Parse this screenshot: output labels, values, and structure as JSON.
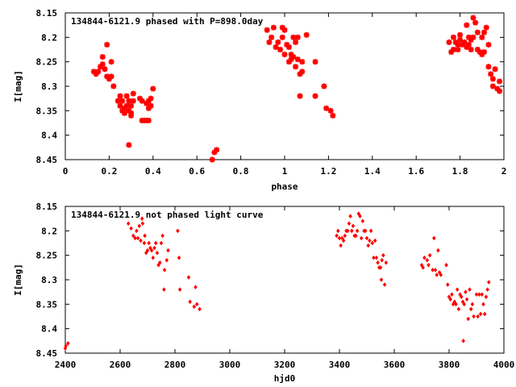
{
  "chart_data": [
    {
      "type": "scatter",
      "title": "134844-6121.9 phased with P=898.0day",
      "xlabel": "phase",
      "ylabel": "I[mag]",
      "xlim": [
        0,
        2
      ],
      "ylim": [
        8.45,
        8.15
      ],
      "y_inverted": true,
      "x_ticks": [
        "0",
        "0.2",
        "0.4",
        "0.6",
        "0.8",
        "1",
        "1.2",
        "1.4",
        "1.6",
        "1.8",
        "2"
      ],
      "y_ticks": [
        "8.15",
        "8.2",
        "8.25",
        "8.3",
        "8.35",
        "8.4",
        "8.45"
      ],
      "marker": "star",
      "series": [
        {
          "color": "#ff0000",
          "points": [
            [
              0.13,
              8.27
            ],
            [
              0.14,
              8.275
            ],
            [
              0.15,
              8.27
            ],
            [
              0.16,
              8.26
            ],
            [
              0.17,
              8.255
            ],
            [
              0.17,
              8.24
            ],
            [
              0.18,
              8.265
            ],
            [
              0.19,
              8.215
            ],
            [
              0.19,
              8.28
            ],
            [
              0.2,
              8.285
            ],
            [
              0.21,
              8.28
            ],
            [
              0.21,
              8.25
            ],
            [
              0.22,
              8.3
            ],
            [
              0.24,
              8.33
            ],
            [
              0.25,
              8.34
            ],
            [
              0.25,
              8.32
            ],
            [
              0.26,
              8.35
            ],
            [
              0.26,
              8.33
            ],
            [
              0.27,
              8.355
            ],
            [
              0.27,
              8.345
            ],
            [
              0.28,
              8.34
            ],
            [
              0.28,
              8.32
            ],
            [
              0.29,
              8.35
            ],
            [
              0.29,
              8.33
            ],
            [
              0.3,
              8.355
            ],
            [
              0.3,
              8.36
            ],
            [
              0.3,
              8.34
            ],
            [
              0.31,
              8.33
            ],
            [
              0.31,
              8.315
            ],
            [
              0.29,
              8.42
            ],
            [
              0.34,
              8.325
            ],
            [
              0.35,
              8.37
            ],
            [
              0.35,
              8.33
            ],
            [
              0.36,
              8.37
            ],
            [
              0.37,
              8.37
            ],
            [
              0.37,
              8.335
            ],
            [
              0.38,
              8.33
            ],
            [
              0.38,
              8.345
            ],
            [
              0.38,
              8.37
            ],
            [
              0.39,
              8.34
            ],
            [
              0.39,
              8.325
            ],
            [
              0.4,
              8.305
            ],
            [
              0.67,
              8.45
            ],
            [
              0.68,
              8.435
            ],
            [
              0.69,
              8.43
            ],
            [
              0.92,
              8.185
            ],
            [
              0.93,
              8.21
            ],
            [
              0.94,
              8.2
            ],
            [
              0.95,
              8.18
            ],
            [
              0.96,
              8.22
            ],
            [
              0.97,
              8.21
            ],
            [
              0.98,
              8.225
            ],
            [
              0.99,
              8.2
            ],
            [
              0.99,
              8.18
            ],
            [
              1.0,
              8.185
            ],
            [
              1.0,
              8.235
            ],
            [
              1.01,
              8.215
            ],
            [
              1.02,
              8.25
            ],
            [
              1.02,
              8.22
            ],
            [
              1.03,
              8.245
            ],
            [
              1.03,
              8.235
            ],
            [
              1.04,
              8.2
            ],
            [
              1.04,
              8.24
            ],
            [
              1.05,
              8.21
            ],
            [
              1.05,
              8.26
            ],
            [
              1.06,
              8.2
            ],
            [
              1.06,
              8.245
            ],
            [
              1.07,
              8.275
            ],
            [
              1.07,
              8.32
            ],
            [
              1.08,
              8.27
            ],
            [
              1.08,
              8.25
            ],
            [
              1.1,
              8.195
            ],
            [
              1.14,
              8.32
            ],
            [
              1.14,
              8.25
            ],
            [
              1.18,
              8.3
            ],
            [
              1.19,
              8.345
            ],
            [
              1.21,
              8.35
            ],
            [
              1.22,
              8.36
            ],
            [
              1.75,
              8.21
            ],
            [
              1.76,
              8.23
            ],
            [
              1.77,
              8.2
            ],
            [
              1.77,
              8.225
            ],
            [
              1.78,
              8.21
            ],
            [
              1.79,
              8.215
            ],
            [
              1.79,
              8.225
            ],
            [
              1.8,
              8.205
            ],
            [
              1.8,
              8.195
            ],
            [
              1.81,
              8.215
            ],
            [
              1.82,
              8.21
            ],
            [
              1.83,
              8.175
            ],
            [
              1.83,
              8.22
            ],
            [
              1.84,
              8.215
            ],
            [
              1.84,
              8.2
            ],
            [
              1.85,
              8.225
            ],
            [
              1.85,
              8.205
            ],
            [
              1.86,
              8.16
            ],
            [
              1.86,
              8.2
            ],
            [
              1.87,
              8.17
            ],
            [
              1.88,
              8.19
            ],
            [
              1.88,
              8.225
            ],
            [
              1.89,
              8.23
            ],
            [
              1.9,
              8.235
            ],
            [
              1.9,
              8.2
            ],
            [
              1.91,
              8.23
            ],
            [
              1.91,
              8.19
            ],
            [
              1.92,
              8.18
            ],
            [
              1.93,
              8.215
            ],
            [
              1.93,
              8.26
            ],
            [
              1.94,
              8.275
            ],
            [
              1.95,
              8.285
            ],
            [
              1.95,
              8.3
            ],
            [
              1.96,
              8.265
            ],
            [
              1.97,
              8.305
            ],
            [
              1.98,
              8.31
            ],
            [
              1.98,
              8.29
            ]
          ]
        }
      ]
    },
    {
      "type": "scatter",
      "title": "134844-6121.9 not phased light curve",
      "xlabel": "hjd0",
      "ylabel": "I[mag]",
      "xlim": [
        2400,
        4000
      ],
      "ylim": [
        8.45,
        8.15
      ],
      "y_inverted": true,
      "x_ticks": [
        "2400",
        "2600",
        "2800",
        "3000",
        "3200",
        "3400",
        "3600",
        "3800",
        "4000"
      ],
      "y_ticks": [
        "8.15",
        "8.2",
        "8.25",
        "8.3",
        "8.35",
        "8.4",
        "8.45"
      ],
      "marker": "diamond",
      "series": [
        {
          "color": "#ff0000",
          "points": [
            [
              2400,
              8.44
            ],
            [
              2402,
              8.435
            ],
            [
              2410,
              8.43
            ],
            [
              2630,
              8.185
            ],
            [
              2640,
              8.195
            ],
            [
              2648,
              8.21
            ],
            [
              2655,
              8.215
            ],
            [
              2660,
              8.2
            ],
            [
              2665,
              8.215
            ],
            [
              2670,
              8.19
            ],
            [
              2675,
              8.22
            ],
            [
              2680,
              8.175
            ],
            [
              2682,
              8.185
            ],
            [
              2688,
              8.225
            ],
            [
              2690,
              8.21
            ],
            [
              2695,
              8.245
            ],
            [
              2700,
              8.24
            ],
            [
              2705,
              8.225
            ],
            [
              2710,
              8.235
            ],
            [
              2715,
              8.24
            ],
            [
              2720,
              8.255
            ],
            [
              2725,
              8.235
            ],
            [
              2730,
              8.225
            ],
            [
              2735,
              8.245
            ],
            [
              2740,
              8.27
            ],
            [
              2745,
              8.265
            ],
            [
              2750,
              8.225
            ],
            [
              2755,
              8.21
            ],
            [
              2760,
              8.32
            ],
            [
              2762,
              8.28
            ],
            [
              2770,
              8.26
            ],
            [
              2775,
              8.24
            ],
            [
              2810,
              8.2
            ],
            [
              2815,
              8.255
            ],
            [
              2818,
              8.32
            ],
            [
              2850,
              8.295
            ],
            [
              2855,
              8.345
            ],
            [
              2870,
              8.355
            ],
            [
              2875,
              8.315
            ],
            [
              2880,
              8.35
            ],
            [
              2890,
              8.36
            ],
            [
              3390,
              8.21
            ],
            [
              3395,
              8.2
            ],
            [
              3400,
              8.215
            ],
            [
              3405,
              8.23
            ],
            [
              3410,
              8.215
            ],
            [
              3415,
              8.22
            ],
            [
              3420,
              8.21
            ],
            [
              3425,
              8.2
            ],
            [
              3430,
              8.2
            ],
            [
              3435,
              8.185
            ],
            [
              3440,
              8.17
            ],
            [
              3445,
              8.2
            ],
            [
              3450,
              8.19
            ],
            [
              3455,
              8.21
            ],
            [
              3460,
              8.21
            ],
            [
              3465,
              8.2
            ],
            [
              3470,
              8.165
            ],
            [
              3475,
              8.17
            ],
            [
              3480,
              8.215
            ],
            [
              3485,
              8.18
            ],
            [
              3490,
              8.2
            ],
            [
              3495,
              8.2
            ],
            [
              3500,
              8.215
            ],
            [
              3505,
              8.23
            ],
            [
              3510,
              8.22
            ],
            [
              3515,
              8.2
            ],
            [
              3520,
              8.225
            ],
            [
              3525,
              8.255
            ],
            [
              3530,
              8.22
            ],
            [
              3535,
              8.255
            ],
            [
              3540,
              8.265
            ],
            [
              3545,
              8.275
            ],
            [
              3550,
              8.275
            ],
            [
              3553,
              8.3
            ],
            [
              3555,
              8.26
            ],
            [
              3560,
              8.25
            ],
            [
              3565,
              8.31
            ],
            [
              3570,
              8.265
            ],
            [
              3700,
              8.27
            ],
            [
              3705,
              8.275
            ],
            [
              3710,
              8.255
            ],
            [
              3720,
              8.26
            ],
            [
              3725,
              8.27
            ],
            [
              3730,
              8.25
            ],
            [
              3740,
              8.28
            ],
            [
              3745,
              8.215
            ],
            [
              3750,
              8.28
            ],
            [
              3755,
              8.29
            ],
            [
              3760,
              8.24
            ],
            [
              3765,
              8.285
            ],
            [
              3770,
              8.29
            ],
            [
              3790,
              8.27
            ],
            [
              3795,
              8.31
            ],
            [
              3800,
              8.335
            ],
            [
              3805,
              8.34
            ],
            [
              3810,
              8.33
            ],
            [
              3815,
              8.35
            ],
            [
              3820,
              8.345
            ],
            [
              3825,
              8.35
            ],
            [
              3830,
              8.32
            ],
            [
              3835,
              8.36
            ],
            [
              3840,
              8.33
            ],
            [
              3845,
              8.335
            ],
            [
              3850,
              8.345
            ],
            [
              3852,
              8.425
            ],
            [
              3855,
              8.35
            ],
            [
              3860,
              8.325
            ],
            [
              3865,
              8.34
            ],
            [
              3870,
              8.38
            ],
            [
              3875,
              8.32
            ],
            [
              3880,
              8.36
            ],
            [
              3885,
              8.35
            ],
            [
              3890,
              8.375
            ],
            [
              3900,
              8.33
            ],
            [
              3905,
              8.375
            ],
            [
              3910,
              8.33
            ],
            [
              3915,
              8.37
            ],
            [
              3920,
              8.33
            ],
            [
              3925,
              8.35
            ],
            [
              3930,
              8.37
            ],
            [
              3935,
              8.335
            ],
            [
              3940,
              8.32
            ],
            [
              3945,
              8.305
            ]
          ]
        }
      ]
    }
  ]
}
